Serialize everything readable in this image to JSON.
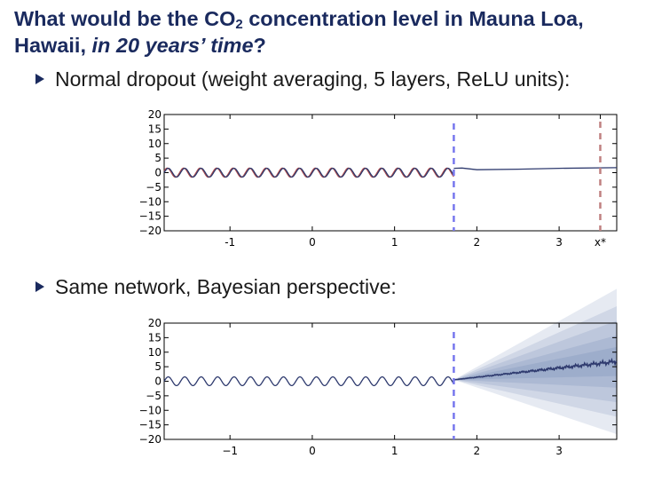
{
  "slide": {
    "title_line1_pre": "What would be the CO",
    "title_sub": "2",
    "title_line1_post": " concentration level in Mauna Loa,",
    "title_line2_pre": "Hawaii, ",
    "title_line2_em": "in 20 years’ time",
    "title_line2_post": "?"
  },
  "bullets": [
    "Normal dropout (weight averaging, 5 layers, ReLU units):",
    "Same network, Bayesian perspective:"
  ],
  "colors": {
    "title": "#1a2a5e",
    "series": "#2e3a6e",
    "observed": "#b04a4a",
    "divider_dashed": "#7777ee",
    "target_dashed": "#c08080",
    "band": "#3d5a99"
  },
  "chart_data": [
    {
      "type": "line",
      "xlim": [
        -1.8,
        3.7
      ],
      "ylim": [
        -20,
        20
      ],
      "y_ticks": [
        20,
        15,
        10,
        5,
        0,
        -5,
        -10,
        -15,
        -20
      ],
      "y_tick_labels": [
        "20",
        "15",
        "10",
        "5",
        "0",
        "−5",
        "−10",
        "−15",
        "−20"
      ],
      "x_ticks": [
        -1,
        0,
        1,
        2,
        3,
        3.5
      ],
      "x_tick_labels": [
        "-1",
        "0",
        "1",
        "2",
        "3",
        "x*"
      ],
      "divider_x": 1.72,
      "target_x": 3.5,
      "series": [
        {
          "kind": "observed",
          "x_range": [
            -1.8,
            1.72
          ],
          "amplitude": 1.5,
          "period": 0.2
        },
        {
          "kind": "prediction",
          "points": [
            [
              1.72,
              1.5
            ],
            [
              1.82,
              1.6
            ],
            [
              2.0,
              1.0
            ],
            [
              2.5,
              1.2
            ],
            [
              3.0,
              1.5
            ],
            [
              3.7,
              1.7
            ]
          ]
        }
      ]
    },
    {
      "type": "line",
      "xlim": [
        -1.8,
        3.7
      ],
      "ylim": [
        -20,
        20
      ],
      "y_ticks": [
        20,
        15,
        10,
        5,
        0,
        -5,
        -10,
        -15,
        -20
      ],
      "y_tick_labels": [
        "20",
        "15",
        "10",
        "5",
        "0",
        "−5",
        "−10",
        "−15",
        "−20"
      ],
      "x_ticks": [
        -1,
        0,
        1,
        2,
        3
      ],
      "x_tick_labels": [
        "−1",
        "0",
        "1",
        "2",
        "3"
      ],
      "divider_x": 1.72,
      "series": [
        {
          "kind": "observed",
          "x_range": [
            -1.8,
            1.72
          ],
          "amplitude": 1.5,
          "period": 0.2
        },
        {
          "kind": "prediction_mean",
          "start": [
            1.72,
            0.5
          ],
          "end": [
            3.7,
            6.8
          ]
        }
      ],
      "uncertainty_bands_end_halfwidth": [
        25,
        19,
        14,
        9,
        5
      ]
    }
  ]
}
